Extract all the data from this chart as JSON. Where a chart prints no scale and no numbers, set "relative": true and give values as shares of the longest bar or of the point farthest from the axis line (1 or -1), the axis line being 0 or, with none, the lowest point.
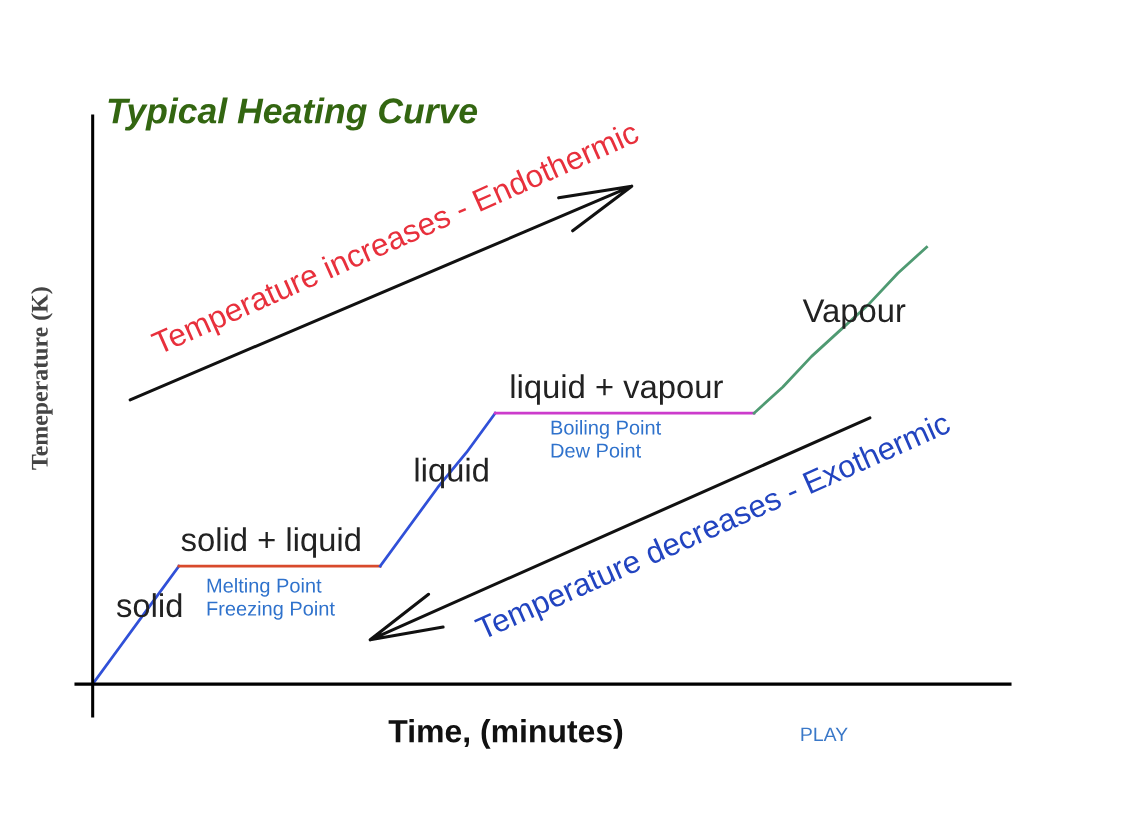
{
  "chart_data": {
    "type": "line",
    "title": "Typical Heating Curve",
    "xlabel": "Time, (minutes)",
    "ylabel": "Temeperature (K)",
    "relative": true,
    "line_style": "solid",
    "categories": [
      null,
      null,
      null,
      null,
      null,
      null,
      null,
      null,
      null,
      null,
      null,
      null,
      null,
      null,
      null,
      null,
      null,
      null,
      null,
      null,
      null,
      null,
      null,
      null,
      null,
      null,
      null,
      null,
      null,
      null
    ],
    "series": [
      {
        "name": "solid",
        "color": "#3050d8",
        "values": [
          0,
          0.09,
          0.18,
          0.27,
          null,
          null,
          null,
          null,
          null,
          null,
          null,
          null,
          null,
          null,
          null,
          null,
          null,
          null,
          null,
          null,
          null,
          null,
          null,
          null,
          null,
          null,
          null,
          null,
          null,
          null
        ]
      },
      {
        "name": "solid + liquid",
        "color": "#d84a2c",
        "values": [
          null,
          null,
          null,
          0.27,
          0.27,
          0.27,
          0.27,
          0.27,
          0.27,
          0.27,
          0.27,
          null,
          null,
          null,
          null,
          null,
          null,
          null,
          null,
          null,
          null,
          null,
          null,
          null,
          null,
          null,
          null,
          null,
          null,
          null
        ]
      },
      {
        "name": "liquid",
        "color": "#3050d8",
        "values": [
          null,
          null,
          null,
          null,
          null,
          null,
          null,
          null,
          null,
          null,
          0.27,
          0.36,
          0.45,
          0.53,
          0.62,
          null,
          null,
          null,
          null,
          null,
          null,
          null,
          null,
          null,
          null,
          null,
          null,
          null,
          null,
          null
        ]
      },
      {
        "name": "liquid + vapour",
        "color": "#cc3ccc",
        "values": [
          null,
          null,
          null,
          null,
          null,
          null,
          null,
          null,
          null,
          null,
          null,
          null,
          null,
          null,
          0.62,
          0.62,
          0.62,
          0.62,
          0.62,
          0.62,
          0.62,
          0.62,
          0.62,
          0.62,
          null,
          null,
          null,
          null,
          null,
          null
        ]
      },
      {
        "name": "Vapour",
        "color": "#4f9a72",
        "values": [
          null,
          null,
          null,
          null,
          null,
          null,
          null,
          null,
          null,
          null,
          null,
          null,
          null,
          null,
          null,
          null,
          null,
          null,
          null,
          null,
          null,
          null,
          null,
          0.62,
          0.68,
          0.75,
          0.81,
          0.87,
          0.94,
          1
        ]
      }
    ],
    "annotations": [
      "Temperature increases - Endothermic",
      "Temperature decreases - Exothermic",
      "Melting Point\nFreezing Point",
      "Boiling Point\nDew Point",
      "PLAY"
    ]
  }
}
